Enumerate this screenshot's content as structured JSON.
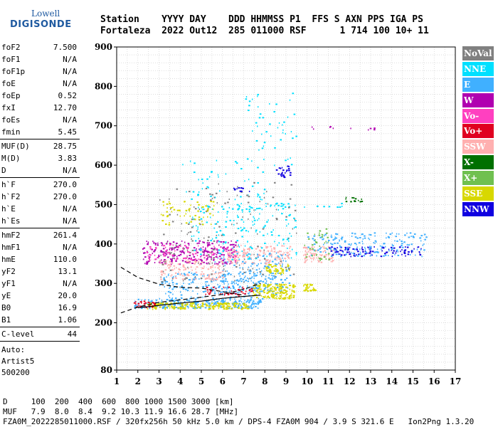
{
  "logo": {
    "line1": "Lowell",
    "line2": "DIGISONDE"
  },
  "header": {
    "line1": "Station    YYYY DAY    DDD HHMMSS P1  FFS S AXN PPS IGA PS",
    "line2": "Fortaleza  2022 Out12  285 011000 RSF      1 714 100 10+ 11"
  },
  "params": {
    "group1": [
      {
        "k": "foF2",
        "v": "7.500"
      },
      {
        "k": "foF1",
        "v": "N/A"
      },
      {
        "k": "foF1p",
        "v": "N/A"
      },
      {
        "k": "foE",
        "v": "N/A"
      },
      {
        "k": "foEp",
        "v": "0.52"
      },
      {
        "k": "fxI",
        "v": "12.70"
      },
      {
        "k": "foEs",
        "v": "N/A"
      },
      {
        "k": "fmin",
        "v": "5.45"
      }
    ],
    "group2": [
      {
        "k": "MUF(D)",
        "v": "28.75"
      },
      {
        "k": "M(D)",
        "v": "3.83"
      },
      {
        "k": "D",
        "v": "N/A"
      }
    ],
    "group3": [
      {
        "k": "h`F",
        "v": "270.0"
      },
      {
        "k": "h`F2",
        "v": "270.0"
      },
      {
        "k": "h`E",
        "v": "N/A"
      },
      {
        "k": "h`Es",
        "v": "N/A"
      }
    ],
    "group4": [
      {
        "k": "hmF2",
        "v": "261.4"
      },
      {
        "k": "hmF1",
        "v": "N/A"
      },
      {
        "k": "hmE",
        "v": "110.0"
      },
      {
        "k": "yF2",
        "v": "13.1"
      },
      {
        "k": "yF1",
        "v": "N/A"
      },
      {
        "k": "yE",
        "v": "20.0"
      },
      {
        "k": "B0",
        "v": "16.9"
      },
      {
        "k": "B1",
        "v": "1.06"
      }
    ],
    "group5": [
      {
        "k": "C-level",
        "v": "44"
      }
    ],
    "auto": [
      "Auto:",
      "Artist5",
      "500200"
    ]
  },
  "legend": [
    {
      "label": "NoVal",
      "color": "#808080"
    },
    {
      "label": "NNE",
      "color": "#00e0ff"
    },
    {
      "label": "E",
      "color": "#40b0ff"
    },
    {
      "label": "W",
      "color": "#b000b0"
    },
    {
      "label": "Vo-",
      "color": "#ff40c0"
    },
    {
      "label": "Vo+",
      "color": "#e00020"
    },
    {
      "label": "SSW",
      "color": "#ffb0b0"
    },
    {
      "label": "X-",
      "color": "#007000"
    },
    {
      "label": "X+",
      "color": "#70c050"
    },
    {
      "label": "SSE",
      "color": "#d8d800"
    },
    {
      "label": "NNW",
      "color": "#1000e0"
    }
  ],
  "bottom": {
    "line1": "D     100  200  400  600  800 1000 1500 3000 [km]",
    "line2": "MUF   7.9  8.0  8.4  9.2 10.3 11.9 16.6 28.7 [MHz]",
    "line3": "FZA0M_2022285011000.RSF / 320fx256h 50 kHz 5.0 km / DPS-4 FZA0M 904 / 3.9 S 321.6 E   Ion2Png 1.3.20"
  },
  "chart_data": {
    "type": "scatter",
    "xlim": [
      1,
      17
    ],
    "ylim": [
      80,
      900
    ],
    "xticks": [
      1,
      2,
      3,
      4,
      5,
      6,
      7,
      8,
      9,
      10,
      11,
      12,
      13,
      14,
      15,
      16,
      17
    ],
    "yticks": [
      80,
      200,
      300,
      400,
      500,
      600,
      700,
      800,
      900
    ],
    "grid": true,
    "legend_placement": "right",
    "clusters": [
      {
        "color": "#40b0ff",
        "x": [
          1.8,
          7.8
        ],
        "y": [
          238,
          262
        ],
        "n": 260
      },
      {
        "color": "#40b0ff",
        "x": [
          3.0,
          8.5
        ],
        "y": [
          262,
          330
        ],
        "n": 220
      },
      {
        "color": "#40b0ff",
        "x": [
          5.6,
          9.2
        ],
        "y": [
          280,
          380
        ],
        "n": 200
      },
      {
        "color": "#d8d800",
        "x": [
          2.4,
          7.2
        ],
        "y": [
          236,
          252
        ],
        "n": 180
      },
      {
        "color": "#d8d800",
        "x": [
          7.4,
          9.4
        ],
        "y": [
          262,
          300
        ],
        "n": 160
      },
      {
        "color": "#d8d800",
        "x": [
          9.8,
          10.4
        ],
        "y": [
          280,
          300
        ],
        "n": 30
      },
      {
        "color": "#d8d800",
        "x": [
          8.0,
          9.2
        ],
        "y": [
          325,
          350
        ],
        "n": 50
      },
      {
        "color": "#e00020",
        "x": [
          1.8,
          2.8
        ],
        "y": [
          240,
          258
        ],
        "n": 30
      },
      {
        "color": "#e00020",
        "x": [
          5.0,
          7.4
        ],
        "y": [
          270,
          292
        ],
        "n": 40
      },
      {
        "color": "#b000b0",
        "x": [
          2.2,
          6.6
        ],
        "y": [
          350,
          410
        ],
        "n": 260
      },
      {
        "color": "#ff40c0",
        "x": [
          2.4,
          6.8
        ],
        "y": [
          360,
          400
        ],
        "n": 90
      },
      {
        "color": "#ffb0b0",
        "x": [
          3.0,
          6.0
        ],
        "y": [
          310,
          360
        ],
        "n": 120
      },
      {
        "color": "#ffb0b0",
        "x": [
          6.2,
          9.2
        ],
        "y": [
          350,
          400
        ],
        "n": 130
      },
      {
        "color": "#ffb0b0",
        "x": [
          9.8,
          11.2
        ],
        "y": [
          355,
          395
        ],
        "n": 80
      },
      {
        "color": "#00e0ff",
        "x": [
          4.5,
          9.5
        ],
        "y": [
          360,
          500
        ],
        "n": 140
      },
      {
        "color": "#00e0ff",
        "x": [
          8.0,
          11.8
        ],
        "y": [
          495,
          505
        ],
        "n": 25
      },
      {
        "color": "#00e0ff",
        "x": [
          4.0,
          8.0
        ],
        "y": [
          430,
          620
        ],
        "n": 80
      },
      {
        "color": "#00e0ff",
        "x": [
          7.0,
          9.5
        ],
        "y": [
          600,
          790
        ],
        "n": 50
      },
      {
        "color": "#808080",
        "x": [
          3.0,
          9.5
        ],
        "y": [
          300,
          560
        ],
        "n": 160
      },
      {
        "color": "#1000e0",
        "x": [
          8.4,
          9.2
        ],
        "y": [
          570,
          600
        ],
        "n": 25
      },
      {
        "color": "#1000e0",
        "x": [
          6.5,
          7.3
        ],
        "y": [
          535,
          545
        ],
        "n": 12
      },
      {
        "color": "#1000e0",
        "x": [
          11.0,
          15.4
        ],
        "y": [
          370,
          395
        ],
        "n": 110
      },
      {
        "color": "#40b0ff",
        "x": [
          10.0,
          15.6
        ],
        "y": [
          370,
          430
        ],
        "n": 180
      },
      {
        "color": "#70c050",
        "x": [
          9.8,
          11.0
        ],
        "y": [
          360,
          440
        ],
        "n": 40
      },
      {
        "color": "#b000b0",
        "x": [
          10.0,
          13.2
        ],
        "y": [
          690,
          700
        ],
        "n": 10
      },
      {
        "color": "#007000",
        "x": [
          11.8,
          12.6
        ],
        "y": [
          505,
          520
        ],
        "n": 14
      },
      {
        "color": "#d8d800",
        "x": [
          3.0,
          5.6
        ],
        "y": [
          450,
          510
        ],
        "n": 60
      }
    ],
    "curves": [
      {
        "color": "#000000",
        "style": "dashed",
        "x": [
          1.2,
          2,
          3,
          4,
          5,
          6,
          7
        ],
        "y": [
          341,
          315,
          298,
          290,
          288,
          279,
          270
        ]
      },
      {
        "color": "#000000",
        "style": "dashed",
        "x": [
          1.2,
          2,
          3,
          4,
          5,
          6,
          7,
          7.8
        ],
        "y": [
          225,
          240,
          252,
          258,
          265,
          272,
          285,
          300
        ]
      },
      {
        "color": "#000000",
        "style": "solid",
        "x": [
          2,
          3,
          4,
          5,
          6,
          7,
          7.8
        ],
        "y": [
          238,
          244,
          250,
          255,
          262,
          267,
          270
        ]
      }
    ]
  }
}
